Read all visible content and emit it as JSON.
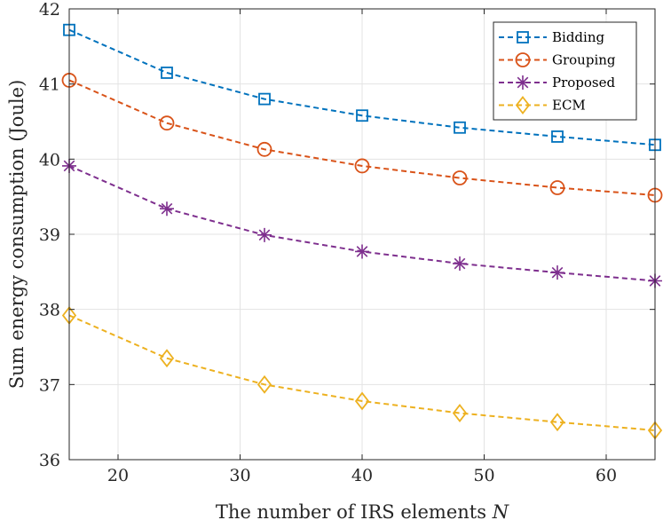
{
  "chart_data": {
    "type": "line",
    "title": "",
    "xlabel": "The number of IRS elements",
    "xlabel_var": "N",
    "ylabel": "Sum energy consumption (Joule)",
    "xlim": [
      16,
      64
    ],
    "ylim": [
      36,
      42
    ],
    "xticks": [
      20,
      30,
      40,
      50,
      60
    ],
    "yticks": [
      36,
      37,
      38,
      39,
      40,
      41,
      42
    ],
    "grid": true,
    "legend_position": "top-right",
    "x": [
      16,
      24,
      32,
      40,
      48,
      56,
      64
    ],
    "series": [
      {
        "name": "Bidding",
        "color": "#0072BD",
        "marker": "square",
        "values": [
          41.72,
          41.15,
          40.8,
          40.58,
          40.42,
          40.3,
          40.19
        ]
      },
      {
        "name": "Grouping",
        "color": "#D95319",
        "marker": "circle",
        "values": [
          41.05,
          40.48,
          40.13,
          39.91,
          39.75,
          39.62,
          39.52
        ]
      },
      {
        "name": "Proposed",
        "color": "#7E2F8E",
        "marker": "asterisk",
        "values": [
          39.91,
          39.34,
          38.99,
          38.77,
          38.61,
          38.49,
          38.38
        ]
      },
      {
        "name": "ECM",
        "color": "#EDB120",
        "marker": "diamond",
        "values": [
          37.92,
          37.35,
          37.0,
          36.78,
          36.62,
          36.5,
          36.39
        ]
      }
    ]
  }
}
